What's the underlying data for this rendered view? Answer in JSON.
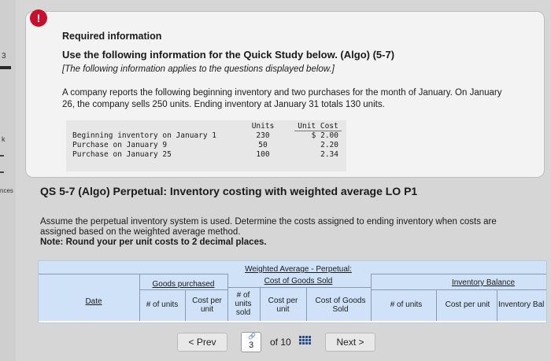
{
  "sidebar": {
    "number": "3",
    "fragment_k": "k",
    "fragment_nces": "nces"
  },
  "info": {
    "alert": "!",
    "required_title": "Required information",
    "use_line": "Use the following information for the Quick Study below. (Algo) (5-7)",
    "italic_note": "[The following information applies to the questions displayed below.]",
    "paragraph": "A company reports the following beginning inventory and two purchases for the month of January. On January 26, the company sells 250 units. Ending inventory at January 31 totals 130 units.",
    "inventory": {
      "header_units": "Units",
      "header_cost": "Unit Cost",
      "rows": [
        {
          "label": "Beginning inventory on January 1",
          "units": "230",
          "cost": "$ 2.00"
        },
        {
          "label": "Purchase on January 9",
          "units": "50",
          "cost": "2.20"
        },
        {
          "label": "Purchase on January 25",
          "units": "100",
          "cost": "2.34"
        }
      ]
    }
  },
  "question": {
    "title": "QS 5-7 (Algo) Perpetual: Inventory costing with weighted average LO P1",
    "assume": "Assume the perpetual inventory system is used. Determine the costs assigned to ending inventory when costs are assigned based on the weighted average method.",
    "note": "Note: Round your per unit costs to 2 decimal places."
  },
  "table": {
    "wa_title": "Weighted Average - Perpetual:",
    "cogs_title": "Cost of Goods Sold",
    "goods_purchased": "Goods purchased",
    "inventory_balance": "Inventory Balance",
    "date": "Date",
    "num_units": "# of units",
    "cost_per_unit": "Cost per unit",
    "num_units_sold": "# of units sold",
    "cogs_cost_per_unit": "Cost per unit",
    "cost_of_goods_sold": "Cost of Goods Sold",
    "bal_num_units": "# of units",
    "bal_cost_per_unit": "Cost per unit",
    "bal_inventory": "Inventory Bal"
  },
  "pager": {
    "prev": "< Prev",
    "current_page": "3",
    "of_text": "of 10",
    "next": "Next >"
  }
}
